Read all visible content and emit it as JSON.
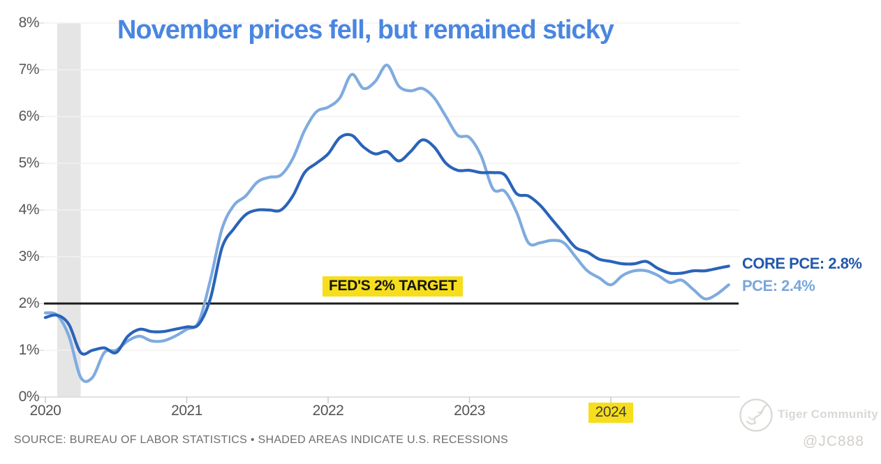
{
  "title": {
    "text": "November prices fell, but remained sticky",
    "color": "#4a86e0"
  },
  "target_line": {
    "label": "FED'S 2% TARGET",
    "value_pct": 2.0,
    "highlight_color": "#f6de1d",
    "line_color": "#1b1b1b"
  },
  "legend": {
    "core_pce_label": "CORE PCE: 2.8%",
    "pce_label": "PCE: 2.4%"
  },
  "source_note": "SOURCE: BUREAU OF LABOR STATISTICS • SHADED AREAS INDICATE U.S. RECESSIONS",
  "watermark": {
    "community": "Tiger Community",
    "handle": "@JC888",
    "logo": "tiger-sketch-in-circle"
  },
  "chart_data": {
    "type": "line",
    "title": "November prices fell, but remained sticky",
    "x_start": "2020-01",
    "x_end": "2024-11",
    "x_tick_labels": [
      "2020",
      "2021",
      "2022",
      "2023",
      "2024"
    ],
    "x_tick_highlight": "2024",
    "y_tick_labels": [
      "0%",
      "1%",
      "2%",
      "3%",
      "4%",
      "5%",
      "6%",
      "7%",
      "8%"
    ],
    "ylim": [
      0,
      8
    ],
    "grid": "faint-horizontal",
    "legend_position": "right-of-line-ends",
    "reference_line": {
      "value": 2.0,
      "label": "FED'S 2% TARGET"
    },
    "recession_shading": {
      "from": "2020-02",
      "to": "2020-04",
      "note": "SHADED AREAS INDICATE U.S. RECESSIONS"
    },
    "series": [
      {
        "name": "PCE",
        "latest_value": 2.4,
        "latest_label": "PCE: 2.4%",
        "color": "#7fabdf",
        "values": [
          1.8,
          1.75,
          1.3,
          0.42,
          0.42,
          0.95,
          1.0,
          1.2,
          1.3,
          1.2,
          1.2,
          1.3,
          1.45,
          1.6,
          2.5,
          3.6,
          4.1,
          4.3,
          4.6,
          4.7,
          4.75,
          5.1,
          5.7,
          6.1,
          6.2,
          6.4,
          6.9,
          6.6,
          6.75,
          7.1,
          6.65,
          6.55,
          6.6,
          6.4,
          6.0,
          5.6,
          5.55,
          5.15,
          4.45,
          4.4,
          3.95,
          3.3,
          3.3,
          3.35,
          3.3,
          3.0,
          2.7,
          2.55,
          2.4,
          2.6,
          2.7,
          2.7,
          2.6,
          2.45,
          2.5,
          2.3,
          2.1,
          2.2,
          2.4
        ]
      },
      {
        "name": "CORE PCE",
        "latest_value": 2.8,
        "latest_label": "CORE PCE: 2.8%",
        "color": "#2a63b9",
        "values": [
          1.7,
          1.75,
          1.55,
          0.95,
          1.0,
          1.05,
          0.95,
          1.3,
          1.45,
          1.4,
          1.4,
          1.45,
          1.5,
          1.55,
          2.1,
          3.2,
          3.6,
          3.9,
          4.0,
          4.0,
          4.0,
          4.3,
          4.8,
          5.0,
          5.2,
          5.55,
          5.6,
          5.35,
          5.2,
          5.25,
          5.05,
          5.25,
          5.5,
          5.35,
          5.0,
          4.85,
          4.85,
          4.8,
          4.8,
          4.75,
          4.35,
          4.3,
          4.1,
          3.8,
          3.5,
          3.2,
          3.1,
          2.95,
          2.9,
          2.85,
          2.85,
          2.9,
          2.75,
          2.65,
          2.65,
          2.7,
          2.7,
          2.75,
          2.8
        ]
      }
    ]
  }
}
